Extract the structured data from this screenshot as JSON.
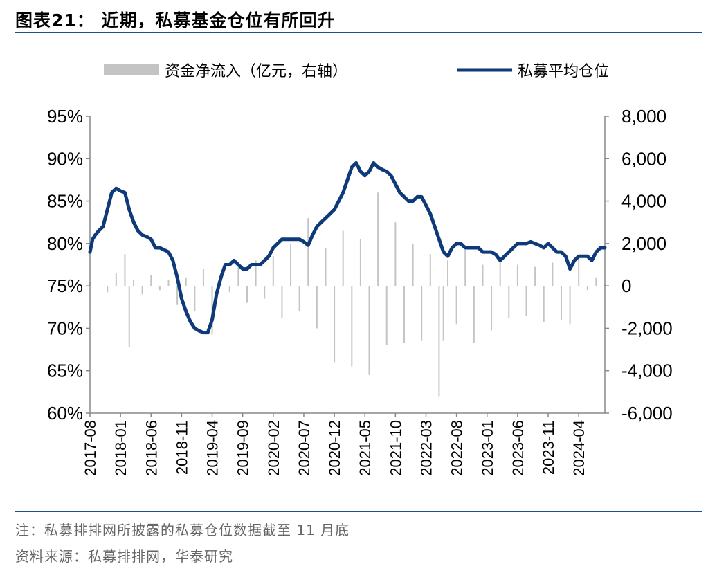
{
  "header": {
    "title": "图表21：  近期，私募基金仓位有所回升"
  },
  "footer": {
    "note": "注：私募排排网所披露的私募仓位数据截至 11 月底",
    "source": "资料来源：私募排排网，华泰研究"
  },
  "colors": {
    "line": "#0f3a7a",
    "bars": "#c4c4c4",
    "axis": "#888888",
    "rule": "#1e4e8c"
  },
  "chart_data": {
    "type": "line",
    "title": "",
    "legend": {
      "placement": "top",
      "entries": [
        "资金净流入（亿元，右轴）",
        "私募平均仓位"
      ]
    },
    "x_tick_labels": [
      "2017-08",
      "2018-01",
      "2018-06",
      "2018-11",
      "2019-04",
      "2019-09",
      "2020-02",
      "2020-07",
      "2020-12",
      "2021-05",
      "2021-10",
      "2022-03",
      "2022-08",
      "2023-01",
      "2023-06",
      "2023-11",
      "2024-04"
    ],
    "y_left": {
      "ticks": [
        "60%",
        "65%",
        "70%",
        "75%",
        "80%",
        "85%",
        "90%",
        "95%"
      ],
      "range": [
        60,
        95
      ],
      "unit": "%"
    },
    "y_right": {
      "ticks": [
        "-6,000",
        "-4,000",
        "-2,000",
        "0",
        "2,000",
        "4,000",
        "6,000",
        "8,000"
      ],
      "range": [
        -6000,
        8000
      ]
    },
    "series": [
      {
        "name": "私募平均仓位",
        "axis": "left",
        "style": "line",
        "points": [
          [
            0,
            79
          ],
          [
            0.3,
            80.5
          ],
          [
            0.6,
            81
          ],
          [
            1,
            81.5
          ],
          [
            1.5,
            82
          ],
          [
            2,
            84
          ],
          [
            2.5,
            86
          ],
          [
            3,
            86.5
          ],
          [
            3.5,
            86.2
          ],
          [
            4,
            86
          ],
          [
            4.5,
            84
          ],
          [
            5,
            82.5
          ],
          [
            5.5,
            81.5
          ],
          [
            6,
            81
          ],
          [
            6.5,
            80.8
          ],
          [
            7,
            80.5
          ],
          [
            7.5,
            79.5
          ],
          [
            8,
            79.5
          ],
          [
            9,
            79
          ],
          [
            9.5,
            78
          ],
          [
            10,
            76
          ],
          [
            10.5,
            73.5
          ],
          [
            11,
            72
          ],
          [
            11.5,
            70.8
          ],
          [
            12,
            70
          ],
          [
            12.5,
            69.7
          ],
          [
            13,
            69.5
          ],
          [
            13.5,
            69.5
          ],
          [
            14,
            71
          ],
          [
            14.5,
            74
          ],
          [
            15,
            76
          ],
          [
            15.5,
            77.5
          ],
          [
            16,
            77.5
          ],
          [
            16.5,
            78
          ],
          [
            17,
            77.5
          ],
          [
            17.5,
            77
          ],
          [
            18,
            77
          ],
          [
            18.5,
            77.5
          ],
          [
            19,
            77.5
          ],
          [
            19.5,
            77.5
          ],
          [
            20,
            78
          ],
          [
            20.5,
            78.5
          ],
          [
            21,
            79.5
          ],
          [
            21.5,
            80
          ],
          [
            22,
            80.5
          ],
          [
            22.5,
            80.5
          ],
          [
            23,
            80.5
          ],
          [
            23.5,
            80.5
          ],
          [
            24,
            80.5
          ],
          [
            24.5,
            80.2
          ],
          [
            25,
            79.8
          ],
          [
            25.5,
            81
          ],
          [
            26,
            82
          ],
          [
            26.5,
            82.5
          ],
          [
            27,
            83
          ],
          [
            27.5,
            83.5
          ],
          [
            28,
            84
          ],
          [
            28.5,
            85
          ],
          [
            29,
            86
          ],
          [
            29.5,
            87.5
          ],
          [
            30,
            89
          ],
          [
            30.5,
            89.5
          ],
          [
            31,
            88.5
          ],
          [
            31.5,
            88
          ],
          [
            32,
            88.5
          ],
          [
            32.5,
            89.5
          ],
          [
            33,
            89
          ],
          [
            33.5,
            88.7
          ],
          [
            34,
            88.5
          ],
          [
            34.5,
            88
          ],
          [
            35,
            87
          ],
          [
            35.5,
            86
          ],
          [
            36,
            85.5
          ],
          [
            36.5,
            85
          ],
          [
            37,
            85
          ],
          [
            37.5,
            85.5
          ],
          [
            38,
            85.5
          ],
          [
            38.5,
            84.5
          ],
          [
            39,
            83.5
          ],
          [
            39.5,
            82
          ],
          [
            40,
            80.5
          ],
          [
            40.5,
            79
          ],
          [
            41,
            78.5
          ],
          [
            41.5,
            79.5
          ],
          [
            42,
            80
          ],
          [
            42.5,
            80
          ],
          [
            43,
            79.5
          ],
          [
            43.5,
            79.5
          ],
          [
            44,
            79.5
          ],
          [
            44.5,
            79.5
          ],
          [
            45,
            79
          ],
          [
            45.5,
            79
          ],
          [
            46,
            79
          ],
          [
            46.5,
            78.7
          ],
          [
            47,
            78
          ],
          [
            47.5,
            78.5
          ],
          [
            48,
            79
          ],
          [
            48.5,
            79.5
          ],
          [
            49,
            80
          ],
          [
            49.5,
            80
          ],
          [
            50,
            80
          ],
          [
            50.5,
            80.2
          ],
          [
            51,
            80
          ],
          [
            51.5,
            79.8
          ],
          [
            52,
            79.5
          ],
          [
            52.5,
            80
          ],
          [
            53,
            79.5
          ],
          [
            53.5,
            79
          ],
          [
            54,
            79
          ],
          [
            54.5,
            78.5
          ],
          [
            55,
            77
          ],
          [
            55.5,
            78
          ],
          [
            56,
            78.5
          ],
          [
            56.5,
            78.5
          ],
          [
            57,
            78.5
          ],
          [
            57.5,
            78
          ],
          [
            58,
            79
          ],
          [
            58.5,
            79.5
          ],
          [
            59,
            79.5
          ]
        ]
      },
      {
        "name": "资金净流入（亿元，右轴）",
        "axis": "right",
        "style": "bar",
        "points": [
          [
            0,
            200
          ],
          [
            2,
            -300
          ],
          [
            3,
            600
          ],
          [
            4,
            1500
          ],
          [
            4.5,
            -2900
          ],
          [
            5,
            300
          ],
          [
            6,
            -400
          ],
          [
            7,
            500
          ],
          [
            8,
            -200
          ],
          [
            9,
            300
          ],
          [
            10,
            -900
          ],
          [
            11,
            400
          ],
          [
            12,
            -1200
          ],
          [
            13,
            800
          ],
          [
            14,
            -2300
          ],
          [
            15,
            600
          ],
          [
            16,
            -300
          ],
          [
            17,
            900
          ],
          [
            18,
            -800
          ],
          [
            19,
            1200
          ],
          [
            20,
            -600
          ],
          [
            21,
            1400
          ],
          [
            22,
            -1500
          ],
          [
            23,
            2000
          ],
          [
            24,
            -1200
          ],
          [
            25,
            3200
          ],
          [
            26,
            -2000
          ],
          [
            27,
            1800
          ],
          [
            28,
            -3600
          ],
          [
            29,
            2600
          ],
          [
            30,
            -3800
          ],
          [
            31,
            2200
          ],
          [
            32,
            -4200
          ],
          [
            33,
            4400
          ],
          [
            34,
            -2800
          ],
          [
            35,
            3000
          ],
          [
            36,
            -2700
          ],
          [
            37,
            2000
          ],
          [
            38,
            -2600
          ],
          [
            39,
            1500
          ],
          [
            40,
            -5200
          ],
          [
            40.5,
            -2600
          ],
          [
            41,
            1200
          ],
          [
            42,
            -1800
          ],
          [
            43,
            1700
          ],
          [
            44,
            -2700
          ],
          [
            45,
            1000
          ],
          [
            46,
            -2100
          ],
          [
            47,
            1300
          ],
          [
            48,
            -1500
          ],
          [
            49,
            1000
          ],
          [
            50,
            -1400
          ],
          [
            51,
            900
          ],
          [
            52,
            -1700
          ],
          [
            53,
            1100
          ],
          [
            54,
            -1600
          ],
          [
            55,
            -1800
          ],
          [
            56,
            1300
          ],
          [
            57,
            -200
          ],
          [
            58,
            400
          ],
          [
            59,
            100
          ]
        ]
      }
    ]
  }
}
